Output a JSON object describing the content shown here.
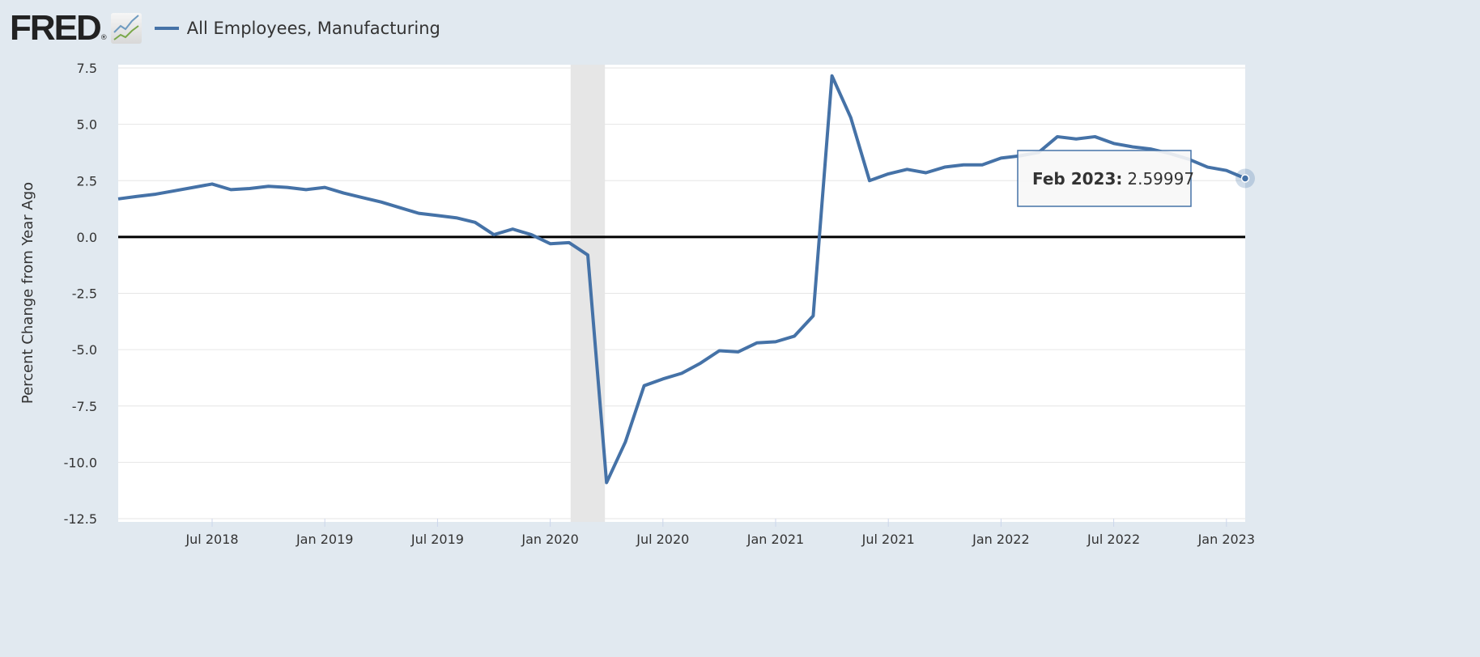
{
  "header": {
    "logo": "FRED",
    "logo_reg": "®",
    "series_label": "All Employees, Manufacturing"
  },
  "tooltip": {
    "date": "Feb 2023:",
    "value": "2.59997"
  },
  "chart_data": {
    "type": "line",
    "title": "",
    "xlabel": "",
    "ylabel": "Percent Change from Year Ago",
    "ylim": [
      -12.5,
      7.5
    ],
    "yticks": [
      "7.5",
      "5.0",
      "2.5",
      "0.0",
      "-2.5",
      "-5.0",
      "-7.5",
      "-10.0",
      "-12.5"
    ],
    "ytick_values": [
      7.5,
      5,
      2.5,
      0,
      -2.5,
      -5,
      -7.5,
      -10,
      -12.5
    ],
    "xticks": [
      {
        "label": "Jul 2018",
        "month": 5
      },
      {
        "label": "Jan 2019",
        "month": 11
      },
      {
        "label": "Jul 2019",
        "month": 17
      },
      {
        "label": "Jan 2020",
        "month": 23
      },
      {
        "label": "Jul 2020",
        "month": 29
      },
      {
        "label": "Jan 2021",
        "month": 35
      },
      {
        "label": "Jul 2021",
        "month": 41
      },
      {
        "label": "Jan 2022",
        "month": 47
      },
      {
        "label": "Jul 2022",
        "month": 53
      },
      {
        "label": "Jan 2023",
        "month": 59
      }
    ],
    "x_start": "Feb 2018",
    "x_end": "Feb 2023",
    "recession": {
      "start_month": 24,
      "end_month": 26
    },
    "grid": true,
    "series": [
      {
        "name": "All Employees, Manufacturing",
        "color": "#4572a7",
        "values": [
          1.69,
          1.8,
          1.9,
          2.05,
          2.2,
          2.35,
          2.1,
          2.15,
          2.25,
          2.2,
          2.1,
          2.2,
          1.95,
          1.75,
          1.55,
          1.3,
          1.05,
          0.95,
          0.85,
          0.65,
          0.1,
          0.35,
          0.1,
          -0.3,
          -0.25,
          -0.8,
          -10.9,
          -9.1,
          -6.6,
          -6.3,
          -6.05,
          -5.6,
          -5.05,
          -5.1,
          -4.7,
          -4.65,
          -4.4,
          -3.5,
          7.15,
          5.3,
          2.5,
          2.8,
          3.0,
          2.85,
          3.1,
          3.2,
          3.2,
          3.5,
          3.6,
          3.75,
          4.45,
          4.35,
          4.45,
          4.15,
          4.0,
          3.9,
          3.7,
          3.45,
          3.1,
          2.95,
          2.59997
        ]
      }
    ]
  }
}
